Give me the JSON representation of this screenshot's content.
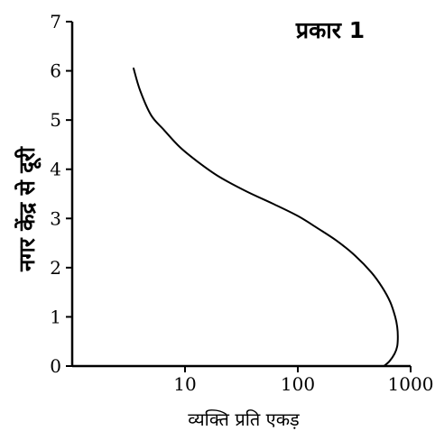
{
  "chart_data": {
    "type": "line",
    "title": "प्रकार  1",
    "xlabel": "व्यक्ति प्रति एकड़",
    "ylabel": "नगर केंद्र से दूरी",
    "x_scale": "log",
    "xlim": [
      1,
      1000
    ],
    "ylim": [
      0,
      7
    ],
    "x_ticks": [
      10,
      100,
      1000
    ],
    "x_tick_labels": [
      "10",
      "100",
      "1000"
    ],
    "y_ticks": [
      0,
      1,
      2,
      3,
      4,
      5,
      6,
      7
    ],
    "y_tick_labels": [
      "0",
      "1",
      "2",
      "3",
      "4",
      "5",
      "6",
      "7"
    ],
    "grid": false,
    "series": [
      {
        "x": [
          3.5,
          4,
          5,
          6.5,
          9,
          13,
          20,
          35,
          60,
          100,
          150,
          220,
          320,
          450,
          560,
          660,
          730,
          760,
          770,
          760,
          720,
          650,
          580
        ],
        "y": [
          6.05,
          5.6,
          5.1,
          4.8,
          4.45,
          4.15,
          3.85,
          3.55,
          3.3,
          3.05,
          2.8,
          2.55,
          2.25,
          1.9,
          1.6,
          1.3,
          1.0,
          0.8,
          0.6,
          0.4,
          0.25,
          0.1,
          0.0
        ]
      }
    ]
  }
}
